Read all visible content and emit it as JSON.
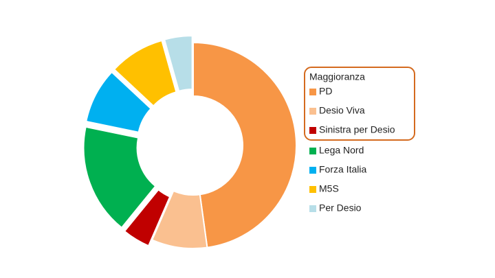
{
  "chart_data": {
    "type": "donut",
    "legend_title": "Maggioranza",
    "categories": [
      "PD",
      "Desio Viva",
      "Sinistra per Desio",
      "Lega Nord",
      "Forza Italia",
      "M5S",
      "Per Desio"
    ],
    "values": [
      11,
      2,
      1,
      4,
      2,
      2,
      1
    ],
    "colors": [
      "#f79646",
      "#fac090",
      "#c00000",
      "#00b050",
      "#00b0f0",
      "#ffc000",
      "#b7dee8"
    ],
    "legend": "right"
  }
}
